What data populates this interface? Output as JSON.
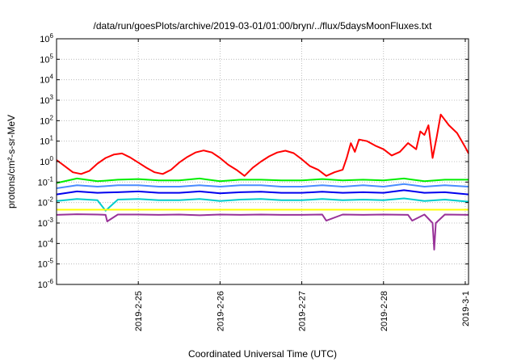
{
  "chart_data": {
    "type": "line",
    "title": "/data/run/goesPlots/archive/2019-03-01/01:00/bryn/../flux/5daysMoonFluxes.txt",
    "xlabel": "Coordinated Universal Time (UTC)",
    "ylabel": "protons/cm²-s-sr-MeV",
    "y_scale": "log",
    "ylim_exp": [
      -6,
      6
    ],
    "y_tick_exponents": [
      6,
      5,
      4,
      3,
      2,
      1,
      0,
      -1,
      -2,
      -3,
      -4,
      -5,
      -6
    ],
    "xlim_days": [
      "2019-02-24 00:00",
      "2019-03-01 01:00"
    ],
    "x_tick_labels": [
      "2019-2-25",
      "2019-2-26",
      "2019-2-27",
      "2019-2-28",
      "2019-3-1"
    ],
    "grid": true,
    "legend": "none",
    "series": [
      {
        "color": "#ff0000",
        "x": [
          0,
          0.1,
          0.2,
          0.3,
          0.4,
          0.5,
          0.6,
          0.7,
          0.8,
          0.9,
          1.0,
          1.1,
          1.2,
          1.3,
          1.4,
          1.5,
          1.6,
          1.7,
          1.8,
          1.9,
          2.0,
          2.1,
          2.2,
          2.3,
          2.4,
          2.5,
          2.6,
          2.7,
          2.8,
          2.9,
          3.0,
          3.1,
          3.2,
          3.3,
          3.4,
          3.5,
          3.55,
          3.6,
          3.65,
          3.7,
          3.8,
          3.9,
          4.0,
          4.1,
          4.2,
          4.3,
          4.4,
          4.45,
          4.5,
          4.55,
          4.6,
          4.65,
          4.7,
          4.8,
          4.9,
          5.0,
          5.04
        ],
        "y": [
          1.2,
          0.6,
          0.3,
          0.25,
          0.35,
          0.8,
          1.5,
          2.2,
          2.5,
          1.6,
          0.9,
          0.5,
          0.3,
          0.25,
          0.4,
          0.9,
          1.7,
          2.8,
          3.5,
          2.8,
          1.5,
          0.7,
          0.4,
          0.2,
          0.5,
          1.0,
          1.8,
          2.8,
          3.4,
          2.6,
          1.3,
          0.6,
          0.4,
          0.2,
          0.3,
          0.4,
          1.5,
          8,
          3,
          12,
          10,
          6,
          4,
          2,
          3,
          8,
          4,
          30,
          20,
          60,
          1.5,
          15,
          200,
          60,
          25,
          5,
          2.5
        ]
      },
      {
        "color": "#00ee00",
        "x": [
          0,
          0.25,
          0.5,
          0.75,
          1.0,
          1.25,
          1.5,
          1.75,
          2.0,
          2.25,
          2.5,
          2.75,
          3.0,
          3.25,
          3.5,
          3.75,
          4.0,
          4.25,
          4.5,
          4.75,
          5.04
        ],
        "y": [
          0.09,
          0.15,
          0.11,
          0.13,
          0.14,
          0.12,
          0.12,
          0.15,
          0.11,
          0.13,
          0.13,
          0.12,
          0.12,
          0.14,
          0.12,
          0.13,
          0.12,
          0.15,
          0.11,
          0.13,
          0.13
        ]
      },
      {
        "color": "#4a8cff",
        "x": [
          0,
          0.25,
          0.5,
          0.75,
          1.0,
          1.25,
          1.5,
          1.75,
          2.0,
          2.25,
          2.5,
          2.75,
          3.0,
          3.25,
          3.5,
          3.75,
          4.0,
          4.25,
          4.5,
          4.75,
          5.04
        ],
        "y": [
          0.05,
          0.07,
          0.06,
          0.07,
          0.07,
          0.06,
          0.06,
          0.07,
          0.06,
          0.07,
          0.07,
          0.06,
          0.06,
          0.07,
          0.06,
          0.07,
          0.06,
          0.08,
          0.06,
          0.07,
          0.06
        ]
      },
      {
        "color": "#0000ee",
        "x": [
          0,
          0.25,
          0.5,
          0.75,
          1.0,
          1.25,
          1.5,
          1.75,
          2.0,
          2.25,
          2.5,
          2.75,
          3.0,
          3.25,
          3.5,
          3.75,
          4.0,
          4.25,
          4.5,
          4.75,
          5.04
        ],
        "y": [
          0.025,
          0.035,
          0.03,
          0.032,
          0.035,
          0.03,
          0.03,
          0.035,
          0.028,
          0.032,
          0.034,
          0.03,
          0.03,
          0.034,
          0.03,
          0.032,
          0.03,
          0.04,
          0.03,
          0.032,
          0.025
        ]
      },
      {
        "color": "#00cccc",
        "x": [
          0,
          0.25,
          0.5,
          0.6,
          0.75,
          1.0,
          1.25,
          1.5,
          1.75,
          2.0,
          2.25,
          2.5,
          2.75,
          3.0,
          3.25,
          3.5,
          3.75,
          4.0,
          4.25,
          4.5,
          4.75,
          5.04
        ],
        "y": [
          0.012,
          0.015,
          0.013,
          0.004,
          0.014,
          0.015,
          0.013,
          0.013,
          0.015,
          0.012,
          0.014,
          0.015,
          0.013,
          0.013,
          0.015,
          0.013,
          0.014,
          0.013,
          0.016,
          0.012,
          0.014,
          0.011
        ]
      },
      {
        "color": "#ffff00",
        "x": [
          0,
          1.0,
          2.0,
          3.0,
          4.0,
          5.04
        ],
        "y": [
          0.0045,
          0.0045,
          0.0045,
          0.0045,
          0.0045,
          0.0045
        ]
      },
      {
        "color": "#993399",
        "x": [
          0,
          0.25,
          0.5,
          0.6,
          0.62,
          0.75,
          1.0,
          1.25,
          1.5,
          1.75,
          2.0,
          2.25,
          2.5,
          2.75,
          3.0,
          3.25,
          3.3,
          3.5,
          3.75,
          4.0,
          4.3,
          4.35,
          4.5,
          4.6,
          4.62,
          4.64,
          4.75,
          5.04
        ],
        "y": [
          0.0025,
          0.0027,
          0.0026,
          0.0025,
          0.0012,
          0.0026,
          0.0026,
          0.0025,
          0.0026,
          0.0024,
          0.0026,
          0.0025,
          0.0026,
          0.0025,
          0.0025,
          0.0026,
          0.0013,
          0.0026,
          0.0025,
          0.0026,
          0.0025,
          0.0013,
          0.0026,
          0.001,
          5e-05,
          0.001,
          0.0026,
          0.0025
        ]
      }
    ]
  }
}
